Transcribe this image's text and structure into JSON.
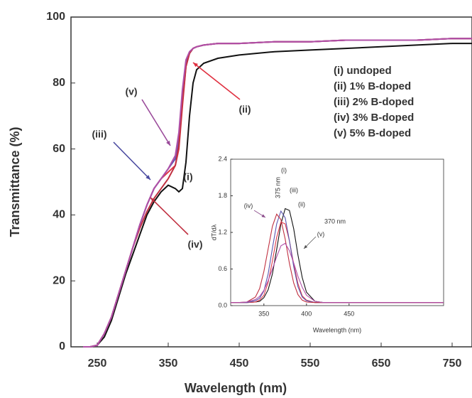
{
  "chart_data": [
    {
      "type": "line",
      "xlabel": "Wavelength (nm)",
      "ylabel": "Transmittance (%)",
      "x": [
        230,
        240,
        250,
        260,
        270,
        280,
        290,
        300,
        310,
        320,
        330,
        340,
        350,
        360,
        365,
        370,
        375,
        380,
        385,
        390,
        400,
        420,
        450,
        500,
        550,
        600,
        650,
        700,
        750,
        778
      ],
      "series": [
        {
          "name": "(i)  undoped",
          "color": "#111111",
          "values": [
            0,
            0,
            0.5,
            3,
            8,
            15,
            22,
            28,
            34,
            40,
            44,
            47,
            49,
            48,
            47,
            48,
            56,
            70,
            80,
            84,
            86,
            87.5,
            88.5,
            89.5,
            90,
            90.5,
            91,
            91.5,
            92,
            92
          ]
        },
        {
          "name": "(ii)  1% B-doped",
          "color": "#e03a4a",
          "values": [
            0,
            0,
            0.5,
            4,
            9,
            16,
            23,
            30,
            37,
            43,
            48,
            51,
            53,
            55,
            60,
            73,
            85,
            89,
            90.5,
            91,
            91.5,
            92,
            92,
            92.5,
            92.5,
            93,
            93,
            93,
            93.5,
            93.5
          ]
        },
        {
          "name": "(iii)  2% B-doped",
          "color": "#5a55b0",
          "values": [
            0,
            0,
            0.5,
            4,
            9,
            16,
            23,
            30,
            37,
            43,
            48,
            51,
            54,
            57,
            63,
            76,
            86,
            89,
            90.5,
            91,
            91.5,
            92,
            92,
            92.5,
            92.5,
            93,
            93,
            93,
            93.5,
            93.5
          ]
        },
        {
          "name": "(iv)  3% B-doped",
          "color": "#c03040",
          "values": [
            0,
            0,
            0.5,
            4,
            9,
            16,
            23,
            30,
            36,
            41,
            45,
            48,
            51,
            55,
            61,
            74,
            85,
            89,
            90.5,
            91,
            91.5,
            92,
            92,
            92.5,
            92.5,
            93,
            93,
            93,
            93.5,
            93.5
          ]
        },
        {
          "name": "(v)  5% B-doped",
          "color": "#b050a8",
          "values": [
            0,
            0,
            0.5,
            4,
            9,
            16,
            23,
            30,
            37,
            43,
            48,
            51,
            54,
            58,
            65,
            78,
            87,
            89.5,
            90.5,
            91,
            91.5,
            92,
            92,
            92.5,
            92.5,
            93,
            93,
            93,
            93.5,
            93.5
          ]
        }
      ],
      "annotations": [
        "(v)",
        "(iii)",
        "(i)",
        "(iv)",
        "(ii)"
      ],
      "xlim": [
        213,
        778
      ],
      "ylim": [
        0,
        100
      ],
      "xticks": [
        250,
        350,
        450,
        550,
        650,
        750
      ],
      "yticks": [
        0,
        20,
        40,
        60,
        80,
        100
      ],
      "legend": "upper right"
    },
    {
      "type": "line",
      "xlabel": "Wavelength (nm)",
      "ylabel": "dT/dλ",
      "x": [
        311,
        320,
        330,
        340,
        345,
        350,
        355,
        360,
        365,
        370,
        375,
        380,
        385,
        390,
        395,
        400,
        410,
        420,
        450,
        500,
        561
      ],
      "series": [
        {
          "color": "#111111",
          "values": [
            0.05,
            0.05,
            0.05,
            0.06,
            0.07,
            0.13,
            0.26,
            0.52,
            0.92,
            1.34,
            1.59,
            1.56,
            1.26,
            0.83,
            0.46,
            0.22,
            0.07,
            0.05,
            0.05,
            0.05,
            0.05
          ]
        },
        {
          "color": "#e03a4a",
          "values": [
            0.05,
            0.05,
            0.05,
            0.06,
            0.09,
            0.17,
            0.38,
            0.73,
            1.12,
            1.37,
            1.34,
            1.06,
            0.68,
            0.36,
            0.16,
            0.09,
            0.05,
            0.05,
            0.05,
            0.05,
            0.05
          ]
        },
        {
          "color": "#5a55b0",
          "values": [
            0.05,
            0.05,
            0.05,
            0.08,
            0.12,
            0.24,
            0.52,
            0.94,
            1.34,
            1.55,
            1.44,
            1.06,
            0.64,
            0.31,
            0.14,
            0.08,
            0.05,
            0.05,
            0.05,
            0.05,
            0.05
          ]
        },
        {
          "color": "#c03040",
          "values": [
            0.05,
            0.05,
            0.06,
            0.14,
            0.28,
            0.56,
            0.93,
            1.3,
            1.5,
            1.41,
            1.09,
            0.69,
            0.37,
            0.18,
            0.09,
            0.06,
            0.05,
            0.05,
            0.05,
            0.05,
            0.05
          ]
        },
        {
          "color": "#b050a8",
          "values": [
            0.05,
            0.05,
            0.06,
            0.1,
            0.15,
            0.25,
            0.41,
            0.6,
            0.8,
            0.98,
            1.02,
            0.9,
            0.7,
            0.48,
            0.3,
            0.17,
            0.07,
            0.05,
            0.05,
            0.05,
            0.05
          ]
        }
      ],
      "annotations": [
        "375 nm",
        "(i)",
        "(iii)",
        "(ii)",
        "370 nm",
        "(iv)",
        "(v)"
      ],
      "xlim": [
        311,
        561
      ],
      "ylim": [
        0,
        2.4
      ],
      "xticks": [
        350,
        400,
        450
      ],
      "yticks": [
        {
          "value": 0,
          "label": "0.0"
        },
        0.6,
        1.2,
        1.8,
        2.4
      ]
    }
  ]
}
